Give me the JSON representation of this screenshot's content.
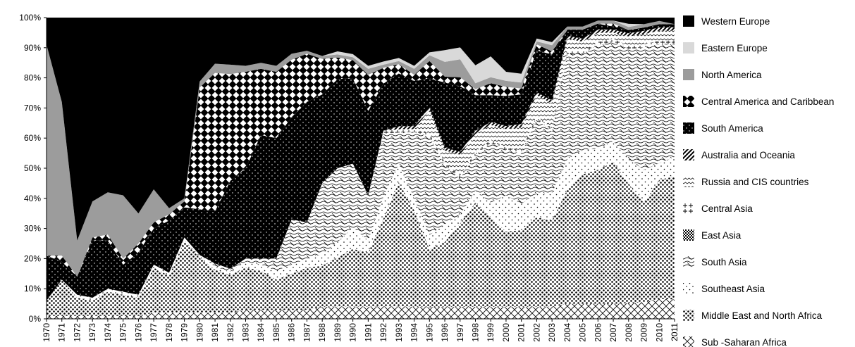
{
  "chart_data": {
    "type": "area",
    "stacked": true,
    "normalized_percent": true,
    "title": "",
    "xlabel": "",
    "ylabel": "",
    "ylim": [
      0,
      100
    ],
    "y_ticks": [
      "0%",
      "10%",
      "20%",
      "30%",
      "40%",
      "50%",
      "60%",
      "70%",
      "80%",
      "90%",
      "100%"
    ],
    "x": [
      "1970",
      "1971",
      "1972",
      "1973",
      "1974",
      "1975",
      "1976",
      "1977",
      "1978",
      "1979",
      "1980",
      "1981",
      "1982",
      "1983",
      "1984",
      "1985",
      "1986",
      "1987",
      "1988",
      "1989",
      "1990",
      "1991",
      "1992",
      "1993",
      "1994",
      "1995",
      "1996",
      "1997",
      "1998",
      "1999",
      "2000",
      "2001",
      "2002",
      "2003",
      "2004",
      "2005",
      "2006",
      "2007",
      "2008",
      "2009",
      "2010",
      "2011"
    ],
    "grid": false,
    "legend_position": "right",
    "series": [
      {
        "name": "Sub -Saharan Africa",
        "values": [
          1,
          1,
          1,
          1,
          1,
          1,
          1,
          2,
          2,
          2,
          2,
          2,
          2,
          3,
          3,
          3,
          3,
          3,
          4,
          4,
          4,
          4,
          4,
          4,
          4,
          4,
          4,
          4,
          4,
          4,
          4,
          4,
          4,
          4,
          5,
          5,
          5,
          5,
          5,
          5,
          6,
          6
        ]
      },
      {
        "name": "Middle East and North Africa",
        "values": [
          5,
          12,
          6,
          5,
          8,
          7,
          6,
          15,
          12,
          24,
          18,
          14,
          12,
          14,
          13,
          10,
          12,
          14,
          14,
          16,
          19,
          18,
          28,
          40,
          32,
          20,
          22,
          28,
          35,
          30,
          25,
          26,
          30,
          28,
          38,
          43,
          44,
          47,
          38,
          30,
          36,
          38
        ]
      },
      {
        "name": "Southeast Asia",
        "values": [
          0,
          0,
          1,
          1,
          1,
          1,
          1,
          1,
          1,
          1,
          1,
          1,
          1,
          2,
          2,
          3,
          3,
          3,
          4,
          5,
          7,
          4,
          7,
          6,
          4,
          5,
          6,
          3,
          4,
          5,
          12,
          9,
          8,
          9,
          10,
          8,
          7,
          7,
          8,
          10,
          5,
          6
        ]
      },
      {
        "name": "South Asia",
        "values": [
          0,
          0,
          0,
          0,
          0,
          0,
          0,
          0,
          0,
          0,
          0,
          1,
          1,
          1,
          2,
          4,
          15,
          12,
          24,
          24,
          21,
          15,
          20,
          10,
          22,
          34,
          20,
          12,
          12,
          20,
          15,
          17,
          25,
          20,
          35,
          32,
          34,
          33,
          35,
          37,
          36,
          35
        ]
      },
      {
        "name": "East Asia",
        "values": [
          0,
          0,
          0,
          0,
          0,
          0,
          0,
          0,
          0,
          0,
          0,
          0,
          0,
          0,
          0,
          0,
          0,
          0,
          0,
          0,
          0,
          0,
          0,
          0,
          0,
          0,
          0,
          0,
          0,
          0,
          0,
          0,
          0,
          0,
          0,
          0,
          0,
          0,
          0,
          0,
          0,
          0
        ]
      },
      {
        "name": "Central Asia",
        "values": [
          0,
          0,
          0,
          0,
          0,
          0,
          0,
          0,
          0,
          0,
          0,
          0,
          0,
          0,
          0,
          0,
          0,
          0,
          0,
          0,
          0,
          0,
          1,
          1,
          1,
          1,
          1,
          1,
          1,
          1,
          1,
          1,
          1,
          1,
          1,
          1,
          1,
          1,
          1,
          1,
          1,
          1
        ]
      },
      {
        "name": "Russia and CIS countries",
        "values": [
          0,
          0,
          0,
          0,
          0,
          0,
          0,
          0,
          0,
          0,
          0,
          0,
          0,
          0,
          0,
          0,
          0,
          0,
          0,
          0,
          0,
          0,
          0,
          0,
          0,
          8,
          4,
          7,
          6,
          5,
          6,
          8,
          7,
          8,
          4,
          3,
          3,
          2,
          3,
          3,
          3,
          3
        ]
      },
      {
        "name": "Australia and Oceania",
        "values": [
          0,
          0,
          0,
          0,
          0,
          0,
          0,
          0,
          0,
          0,
          0,
          0,
          0,
          0,
          0,
          0,
          0,
          0,
          0,
          0,
          0,
          0,
          0,
          1,
          1,
          1,
          1,
          1,
          1,
          1,
          1,
          1,
          1,
          1,
          1,
          1,
          1,
          1,
          1,
          1,
          1,
          1
        ]
      },
      {
        "name": "South America",
        "values": [
          15,
          6,
          6,
          19,
          16,
          9,
          14,
          12,
          17,
          10,
          15,
          17,
          28,
          30,
          41,
          40,
          34,
          40,
          30,
          29,
          28,
          28,
          15,
          17,
          15,
          10,
          22,
          22,
          12,
          9,
          10,
          10,
          14,
          15,
          2,
          3,
          2,
          1,
          1,
          1,
          1,
          1
        ]
      },
      {
        "name": "Central America and Caribbean",
        "values": [
          0,
          2,
          0,
          1,
          2,
          2,
          3,
          2,
          2,
          2,
          40,
          45,
          34,
          32,
          22,
          22,
          19,
          16,
          12,
          7,
          6,
          12,
          5,
          3,
          2,
          6,
          2,
          3,
          2,
          4,
          3,
          2,
          2,
          1,
          0,
          0,
          0,
          1,
          0,
          0,
          0,
          0
        ]
      },
      {
        "name": "North America",
        "values": [
          70,
          51,
          12,
          12,
          14,
          21,
          10,
          11,
          2,
          1,
          2,
          3,
          3,
          2,
          2,
          2,
          2,
          1,
          1,
          1,
          1,
          2,
          1,
          1,
          2,
          2,
          5,
          6,
          2,
          2,
          2,
          2,
          1,
          2,
          1,
          1,
          1,
          1,
          1,
          1,
          1,
          0
        ]
      },
      {
        "name": "Eastern Europe",
        "values": [
          0,
          0,
          0,
          0,
          0,
          0,
          0,
          0,
          0,
          0,
          0,
          0,
          0,
          0,
          0,
          0,
          0,
          0,
          0,
          1,
          1,
          1,
          1,
          1,
          1,
          1,
          4,
          4,
          6,
          7,
          3,
          3,
          1,
          1,
          0,
          0,
          0,
          0,
          1,
          0,
          0,
          0
        ]
      },
      {
        "name": "Western Europe",
        "values": [
          9,
          28,
          74,
          61,
          58,
          59,
          65,
          57,
          62,
          60,
          21,
          15,
          15,
          16,
          15,
          16,
          12,
          11,
          13,
          11,
          12,
          16,
          14,
          13,
          16,
          12,
          11,
          10,
          16,
          13,
          18,
          19,
          7,
          8,
          3,
          3,
          1,
          1,
          2,
          2,
          1,
          2
        ]
      }
    ]
  }
}
